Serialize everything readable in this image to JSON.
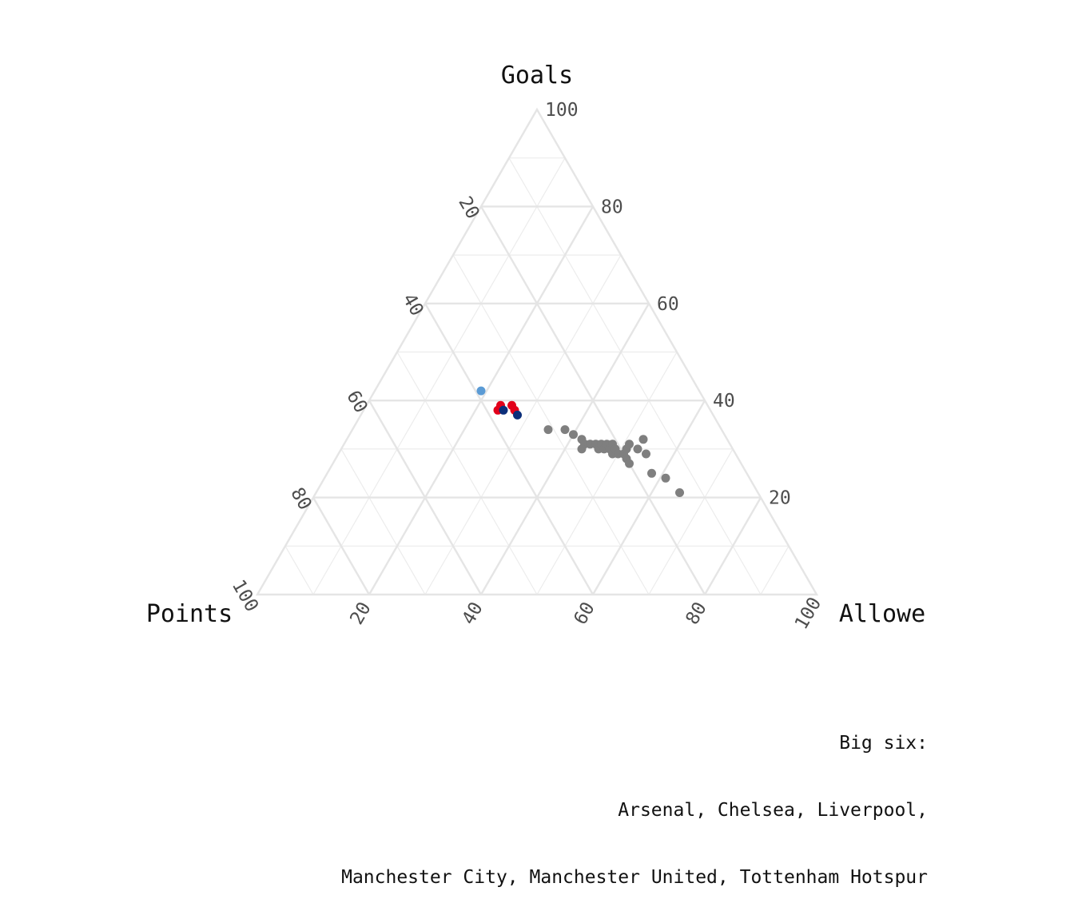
{
  "chart_data": {
    "type": "scatter",
    "subtype": "ternary",
    "axes": {
      "top": "Goals",
      "left": "Points",
      "right": "Allowe"
    },
    "ticks": [
      20,
      40,
      60,
      80,
      100
    ],
    "grid": true,
    "series": [
      {
        "color": "#7f7f7f",
        "points": [
          {
            "points": 31,
            "goals": 34,
            "allowed": 35
          },
          {
            "points": 28,
            "goals": 34,
            "allowed": 38
          },
          {
            "points": 27,
            "goals": 33,
            "allowed": 40
          },
          {
            "points": 26,
            "goals": 32,
            "allowed": 42
          },
          {
            "points": 26,
            "goals": 31,
            "allowed": 43
          },
          {
            "points": 27,
            "goals": 30,
            "allowed": 43
          },
          {
            "points": 25,
            "goals": 31,
            "allowed": 44
          },
          {
            "points": 24,
            "goals": 31,
            "allowed": 45
          },
          {
            "points": 24,
            "goals": 30,
            "allowed": 46
          },
          {
            "points": 23,
            "goals": 31,
            "allowed": 46
          },
          {
            "points": 23,
            "goals": 30,
            "allowed": 47
          },
          {
            "points": 22,
            "goals": 31,
            "allowed": 47
          },
          {
            "points": 22,
            "goals": 30,
            "allowed": 48
          },
          {
            "points": 21,
            "goals": 31,
            "allowed": 48
          },
          {
            "points": 22,
            "goals": 29,
            "allowed": 49
          },
          {
            "points": 21,
            "goals": 30,
            "allowed": 49
          },
          {
            "points": 21,
            "goals": 29,
            "allowed": 50
          },
          {
            "points": 20,
            "goals": 29,
            "allowed": 51
          },
          {
            "points": 19,
            "goals": 30,
            "allowed": 51
          },
          {
            "points": 20,
            "goals": 28,
            "allowed": 52
          },
          {
            "points": 20,
            "goals": 27,
            "allowed": 53
          },
          {
            "points": 18,
            "goals": 31,
            "allowed": 51
          },
          {
            "points": 17,
            "goals": 30,
            "allowed": 53
          },
          {
            "points": 16,
            "goals": 29,
            "allowed": 55
          },
          {
            "points": 17,
            "goals": 25,
            "allowed": 58
          },
          {
            "points": 15,
            "goals": 24,
            "allowed": 61
          },
          {
            "points": 14,
            "goals": 21,
            "allowed": 65
          },
          {
            "points": 15,
            "goals": 32,
            "allowed": 53
          }
        ]
      },
      {
        "color": "#5b9bd5",
        "points": [
          {
            "points": 39,
            "goals": 42,
            "allowed": 19
          }
        ]
      },
      {
        "color": "#e2001a",
        "points": [
          {
            "points": 38,
            "goals": 38,
            "allowed": 24
          },
          {
            "points": 37,
            "goals": 39,
            "allowed": 24
          },
          {
            "points": 35,
            "goals": 38,
            "allowed": 27
          },
          {
            "points": 35,
            "goals": 39,
            "allowed": 26
          }
        ]
      },
      {
        "color": "#0b2e7a",
        "points": [
          {
            "points": 37,
            "goals": 38,
            "allowed": 25
          },
          {
            "points": 35,
            "goals": 37,
            "allowed": 28
          }
        ]
      }
    ]
  },
  "caption": {
    "line1": "Big six:",
    "line2": "Arsenal, Chelsea, Liverpool,",
    "line3": "Manchester City, Manchester United, Tottenham Hotspur"
  }
}
